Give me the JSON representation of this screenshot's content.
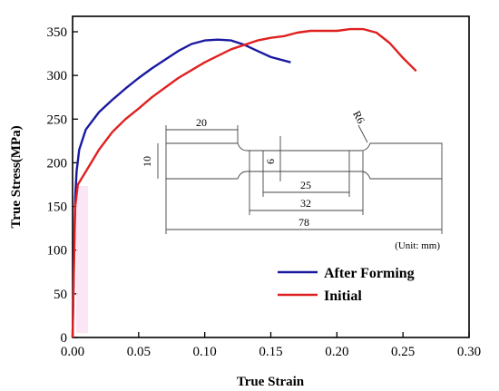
{
  "chart_data": {
    "type": "line",
    "xlabel": "True Strain",
    "ylabel": "True Stress(MPa)",
    "xlim": [
      0.0,
      0.3
    ],
    "ylim": [
      0,
      370
    ],
    "x_ticks": [
      "0.00",
      "0.05",
      "0.10",
      "0.15",
      "0.20",
      "0.25",
      "0.30"
    ],
    "x_tick_values": [
      0.0,
      0.05,
      0.1,
      0.15,
      0.2,
      0.25,
      0.3
    ],
    "y_ticks": [
      "0",
      "50",
      "100",
      "150",
      "200",
      "250",
      "300",
      "350"
    ],
    "y_tick_values": [
      0,
      50,
      100,
      150,
      200,
      250,
      300,
      350
    ],
    "grid": false,
    "legend_position": "bottom-right",
    "series": [
      {
        "name": "After Forming",
        "color": "#1a1aa0",
        "x": [
          0.0,
          0.001,
          0.002,
          0.003,
          0.005,
          0.01,
          0.02,
          0.03,
          0.04,
          0.05,
          0.06,
          0.07,
          0.08,
          0.09,
          0.1,
          0.11,
          0.12,
          0.13,
          0.14,
          0.15,
          0.165
        ],
        "y": [
          0,
          90,
          160,
          190,
          215,
          238,
          258,
          272,
          285,
          297,
          308,
          318,
          328,
          336,
          340,
          341,
          340,
          335,
          328,
          321,
          315
        ]
      },
      {
        "name": "Initial",
        "color": "#e02020",
        "x": [
          0.0,
          0.001,
          0.002,
          0.004,
          0.01,
          0.02,
          0.03,
          0.04,
          0.05,
          0.06,
          0.08,
          0.1,
          0.12,
          0.14,
          0.15,
          0.16,
          0.17,
          0.18,
          0.19,
          0.2,
          0.21,
          0.22,
          0.23,
          0.24,
          0.25,
          0.26
        ],
        "y": [
          0,
          80,
          150,
          175,
          190,
          215,
          235,
          250,
          262,
          275,
          297,
          315,
          330,
          340,
          343,
          345,
          349,
          351,
          351,
          351,
          353,
          353,
          349,
          337,
          320,
          305
        ]
      }
    ],
    "inset": {
      "unit_label": "(Unit: mm)",
      "dimensions": [
        "20",
        "R6",
        "10",
        "6",
        "25",
        "32",
        "78"
      ]
    }
  }
}
